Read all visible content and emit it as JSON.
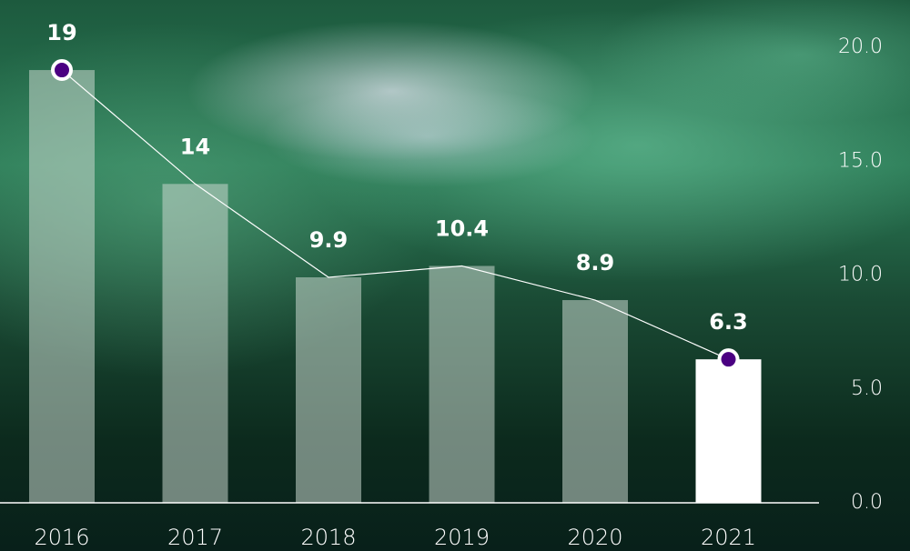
{
  "chart_data": {
    "type": "bar",
    "categories": [
      "2016",
      "2017",
      "2018",
      "2019",
      "2020",
      "2021"
    ],
    "values": [
      19,
      14,
      9.9,
      10.4,
      8.9,
      6.3
    ],
    "color": "rgba(200,215,205,0.55)",
    "highlight_color": "#ffffff",
    "line_color": "#ffffff",
    "marker_color": "#4b0082",
    "ylim": [
      0,
      20
    ],
    "yticks": [
      {
        "value": 0,
        "label": "0.0"
      },
      {
        "value": 5,
        "label": "5.0"
      },
      {
        "value": 10,
        "label": "10.0"
      },
      {
        "value": 15,
        "label": "15.0"
      },
      {
        "value": 20,
        "label": "20.0"
      }
    ],
    "axis_side": "right",
    "grid": false
  }
}
